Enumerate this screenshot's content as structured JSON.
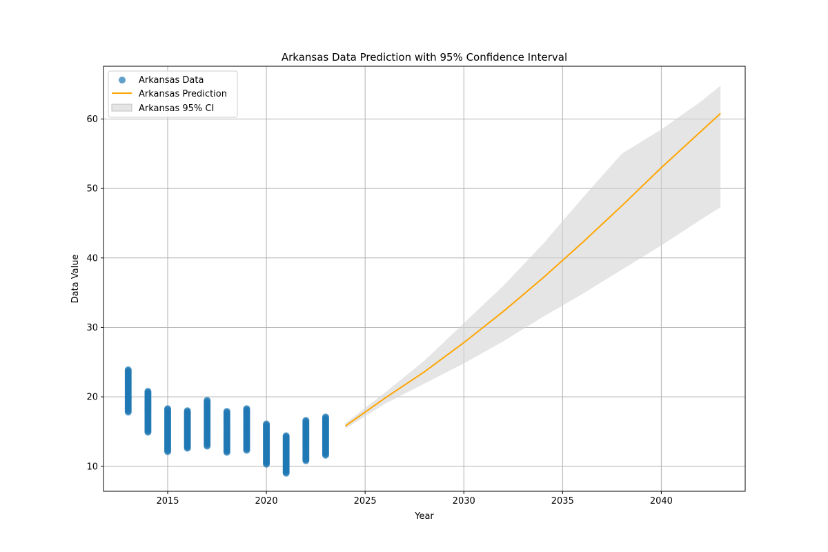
{
  "colors": {
    "data_series": "#1f77b4",
    "prediction": "#ffa500",
    "ci_fill": "#d3d3d3",
    "grid": "#b0b0b0"
  },
  "chart_data": {
    "type": "scatter",
    "title": "Arkansas Data Prediction with 95% Confidence Interval",
    "xlabel": "Year",
    "ylabel": "Data Value",
    "xlim": [
      2011.75,
      2044.25
    ],
    "ylim": [
      6.4,
      67.6
    ],
    "xticks": [
      2015,
      2020,
      2025,
      2030,
      2035,
      2040
    ],
    "yticks": [
      10,
      20,
      30,
      40,
      50,
      60
    ],
    "grid": true,
    "legend": {
      "placement": "top-left",
      "entries": [
        "Arkansas Data",
        "Arkansas Prediction",
        "Arkansas 95% CI"
      ]
    },
    "scatter_series": {
      "name": "Arkansas Data",
      "groups": [
        {
          "x": 2013,
          "y_min": 17.8,
          "y_max": 23.9
        },
        {
          "x": 2014,
          "y_min": 14.9,
          "y_max": 20.8
        },
        {
          "x": 2015,
          "y_min": 12.1,
          "y_max": 18.3
        },
        {
          "x": 2016,
          "y_min": 12.6,
          "y_max": 18.0
        },
        {
          "x": 2017,
          "y_min": 12.9,
          "y_max": 19.5
        },
        {
          "x": 2018,
          "y_min": 12.0,
          "y_max": 17.9
        },
        {
          "x": 2019,
          "y_min": 12.3,
          "y_max": 18.3
        },
        {
          "x": 2020,
          "y_min": 10.3,
          "y_max": 16.1
        },
        {
          "x": 2021,
          "y_min": 9.0,
          "y_max": 14.4
        },
        {
          "x": 2022,
          "y_min": 10.8,
          "y_max": 16.6
        },
        {
          "x": 2023,
          "y_min": 11.6,
          "y_max": 17.1
        }
      ]
    },
    "prediction_series": {
      "name": "Arkansas Prediction",
      "x": [
        2024,
        2026,
        2028,
        2030,
        2032,
        2034,
        2036,
        2038,
        2040,
        2042,
        2043
      ],
      "y": [
        15.8,
        19.8,
        23.6,
        27.8,
        32.3,
        37.1,
        42.2,
        47.5,
        53.0,
        58.2,
        60.8
      ]
    },
    "ci_series": {
      "name": "Arkansas 95% CI",
      "x": [
        2024,
        2026,
        2028,
        2030,
        2032,
        2034,
        2036,
        2038,
        2040,
        2042,
        2043
      ],
      "lower": [
        15.4,
        19.0,
        21.9,
        24.8,
        28.0,
        31.5,
        34.8,
        38.3,
        41.8,
        45.5,
        47.3
      ],
      "upper": [
        16.2,
        20.6,
        25.2,
        30.6,
        36.0,
        42.0,
        48.6,
        55.0,
        58.5,
        62.5,
        64.8
      ]
    }
  }
}
